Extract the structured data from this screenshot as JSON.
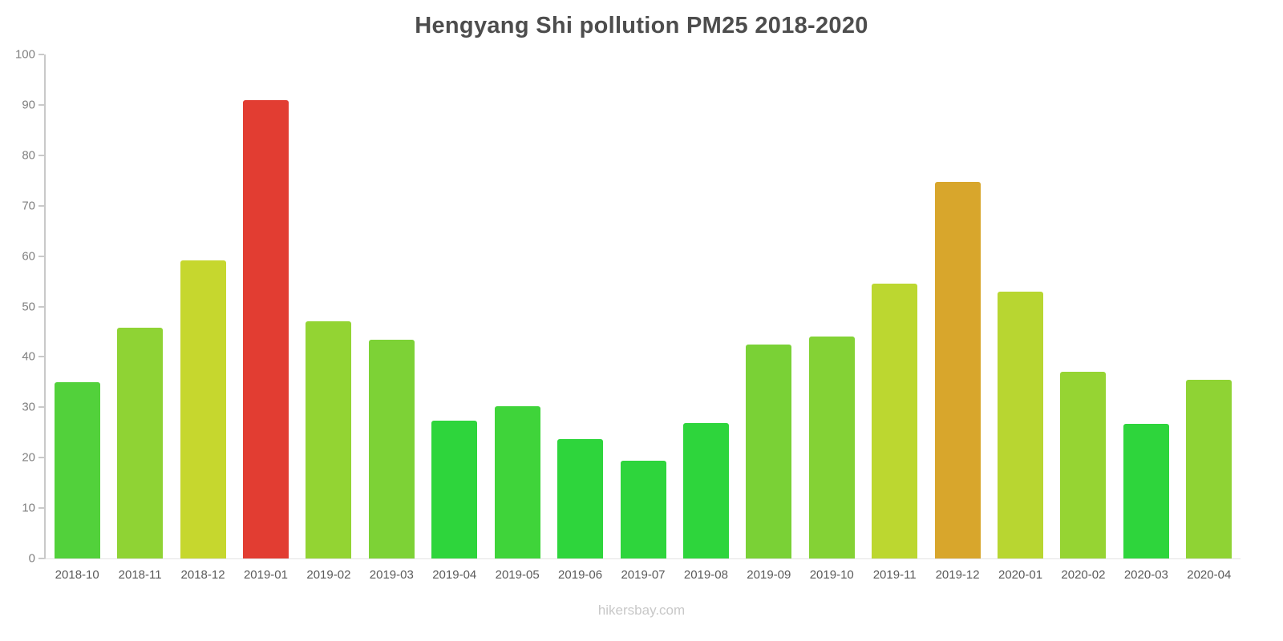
{
  "title": "Hengyang Shi pollution PM25 2018-2020",
  "watermark": "hikersbay.com",
  "chart_data": {
    "type": "bar",
    "title": "Hengyang Shi pollution PM25 2018-2020",
    "categories": [
      "2018-10",
      "2018-11",
      "2018-12",
      "2019-01",
      "2019-02",
      "2019-03",
      "2019-04",
      "2019-05",
      "2019-06",
      "2019-07",
      "2019-08",
      "2019-09",
      "2019-10",
      "2019-11",
      "2019-12",
      "2020-01",
      "2020-02",
      "2020-03",
      "2020-04"
    ],
    "values": [
      35.0,
      45.8,
      59.1,
      91.0,
      47.1,
      43.4,
      27.3,
      30.2,
      23.7,
      19.4,
      26.9,
      42.4,
      44.0,
      54.5,
      74.8,
      52.9,
      37.1,
      26.7,
      35.5
    ],
    "bar_colors": [
      "#52d13b",
      "#8fd334",
      "#c6d72e",
      "#e23d32",
      "#93d433",
      "#7dd236",
      "#2ed53c",
      "#3fd43a",
      "#2ed53c",
      "#2ed53c",
      "#2ed53c",
      "#7ad136",
      "#84d235",
      "#bcd730",
      "#d8a62c",
      "#b8d631",
      "#96d433",
      "#2ed53c",
      "#8fd334"
    ],
    "xlabel": "",
    "ylabel": "",
    "ylim": [
      0,
      100
    ],
    "ytick_step": 10,
    "grid": false,
    "legend": "none",
    "axis_color": "#c9c9c9",
    "tick_label_color": "#808080",
    "x_label_color": "#5a5a5a"
  }
}
